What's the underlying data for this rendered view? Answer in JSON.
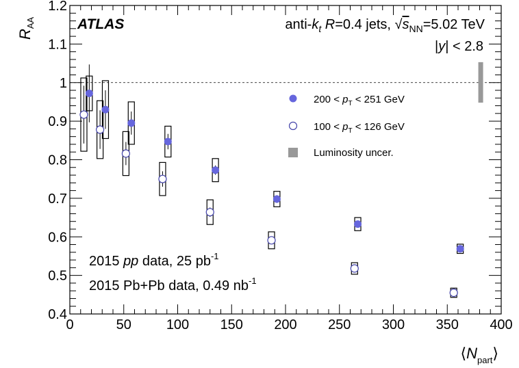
{
  "chart_data": {
    "type": "scatter",
    "title": "",
    "experiment": "ATLAS",
    "jet_label": "anti-k_t R=0.4 jets, √s_NN=5.02 TeV",
    "jet_label_parts": {
      "prefix": "anti-",
      "k": "k",
      "k_sub": "t",
      "R": "R",
      "rdef": "=0.4 jets, ",
      "sqrt": "√",
      "s": "s",
      "s_sub": "NN",
      "energy": "=5.02 TeV"
    },
    "rapidity_cut": "|y| < 2.8",
    "rapidity_parts": {
      "bar1": "|",
      "y": "y",
      "rest": "| < 2.8"
    },
    "pp_label": {
      "year": "2015 ",
      "pp": "pp",
      "mid": " data, 25 pb",
      "sup": "-1"
    },
    "pbpb_label": {
      "text": "2015 Pb+Pb data, 0.49 nb",
      "sup": "-1"
    },
    "xlabel": "⟨N_part⟩",
    "xlabel_parts": {
      "open": "⟨",
      "N": "N",
      "sub": "part",
      "close": "⟩"
    },
    "ylabel": "R_AA",
    "ylabel_parts": {
      "R": "R",
      "sub": "AA"
    },
    "xlim": [
      0,
      400
    ],
    "ylim": [
      0.4,
      1.2
    ],
    "x_ticks": [
      "0",
      "50",
      "100",
      "150",
      "200",
      "250",
      "300",
      "350",
      "400"
    ],
    "y_ticks": [
      "0.4",
      "0.5",
      "0.6",
      "0.7",
      "0.8",
      "0.9",
      "1",
      "1.1",
      "1.2"
    ],
    "reference_line": 1.0,
    "grid": false,
    "legend_position": "top-right",
    "series": [
      {
        "name": "200 < p_T < 251 GeV",
        "label_parts": {
          "pre": "200 < ",
          "p": "p",
          "sub": "T",
          "post": " < 251 GeV"
        },
        "marker": "filled-circle",
        "color": "#6666dd",
        "points": [
          {
            "x": 18,
            "y": 0.972,
            "stat": 0.075,
            "sys": [
              0.045,
              0.045
            ]
          },
          {
            "x": 33,
            "y": 0.93,
            "stat": 0.05,
            "sys": [
              0.075,
              0.075
            ]
          },
          {
            "x": 57,
            "y": 0.895,
            "stat": 0.03,
            "sys": [
              0.055,
              0.055
            ]
          },
          {
            "x": 91,
            "y": 0.847,
            "stat": 0.02,
            "sys": [
              0.04,
              0.04
            ]
          },
          {
            "x": 135,
            "y": 0.773,
            "stat": 0.012,
            "sys": [
              0.03,
              0.03
            ]
          },
          {
            "x": 192,
            "y": 0.698,
            "stat": 0.01,
            "sys": [
              0.02,
              0.02
            ]
          },
          {
            "x": 267,
            "y": 0.633,
            "stat": 0.008,
            "sys": [
              0.017,
              0.017
            ]
          },
          {
            "x": 362,
            "y": 0.569,
            "stat": 0.006,
            "sys": [
              0.012,
              0.012
            ]
          }
        ]
      },
      {
        "name": "100 < p_T < 126 GeV",
        "label_parts": {
          "pre": "100 < ",
          "p": "p",
          "sub": "T",
          "post": " < 126 GeV"
        },
        "marker": "open-circle",
        "color": "#4444aa",
        "points": [
          {
            "x": 13,
            "y": 0.917,
            "stat": 0.075,
            "sys": [
              0.095,
              0.095
            ]
          },
          {
            "x": 28,
            "y": 0.878,
            "stat": 0.05,
            "sys": [
              0.075,
              0.075
            ]
          },
          {
            "x": 52,
            "y": 0.816,
            "stat": 0.03,
            "sys": [
              0.057,
              0.057
            ]
          },
          {
            "x": 86,
            "y": 0.75,
            "stat": 0.02,
            "sys": [
              0.043,
              0.043
            ]
          },
          {
            "x": 130,
            "y": 0.664,
            "stat": 0.012,
            "sys": [
              0.032,
              0.032
            ]
          },
          {
            "x": 187,
            "y": 0.591,
            "stat": 0.01,
            "sys": [
              0.022,
              0.022
            ]
          },
          {
            "x": 264,
            "y": 0.518,
            "stat": 0.008,
            "sys": [
              0.015,
              0.015
            ]
          },
          {
            "x": 356,
            "y": 0.455,
            "stat": 0.006,
            "sys": [
              0.012,
              0.012
            ]
          }
        ]
      }
    ],
    "luminosity_uncertainty": {
      "label": "Luminosity uncer.",
      "x": 381,
      "y_range": [
        0.948,
        1.053
      ],
      "color": "#999999"
    }
  }
}
